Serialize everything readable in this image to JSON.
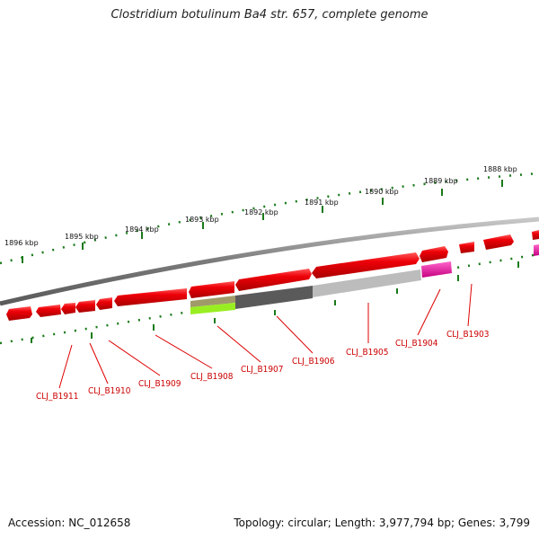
{
  "title": "Clostridium botulinum Ba4 str. 657, complete genome",
  "footer": {
    "accession": "Accession: NC_012658",
    "topology": "Topology: circular; Length: 3,977,794 bp; Genes: 3,799"
  },
  "scale_labels": [
    "1896 kbp",
    "1895 kbp",
    "1894 kbp",
    "1893 kbp",
    "1892 kbp",
    "1891 kbp",
    "1890 kbp",
    "1889 kbp",
    "1888 kbp"
  ],
  "gene_labels": [
    "CLJ_B1911",
    "CLJ_B1910",
    "CLJ_B1909",
    "CLJ_B1908",
    "CLJ_B1907",
    "CLJ_B1906",
    "CLJ_B1905",
    "CLJ_B1904",
    "CLJ_B1903"
  ],
  "colors": {
    "gene_red": "#e8000f",
    "gene_pink": "#ee1199",
    "backbone": "#808080",
    "tick_green": "#1a7a1a",
    "label_red": "#cc0000",
    "bar_gray_dark": "#5a5a5a",
    "bar_gray_light": "#b8b8b8",
    "bar_olive": "#a09a6a",
    "bar_lime": "#99ee22"
  }
}
